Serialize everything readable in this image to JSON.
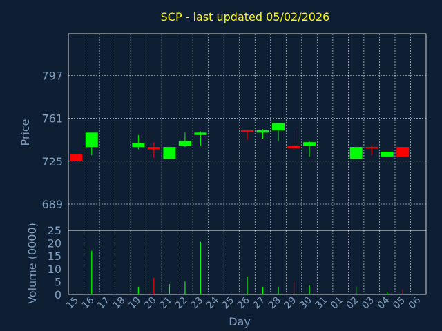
{
  "chart_data": [
    {
      "type": "candlestick",
      "title": "SCP - last updated 05/02/2026",
      "xlabel": "",
      "ylabel": "Price",
      "ylim": [
        667,
        832
      ],
      "yticks": [
        689,
        725,
        761,
        797
      ],
      "grid": true,
      "colors": {
        "up": "#00ff00",
        "down": "#ff0000",
        "background": "#0e1f33",
        "plot_border": "#ffffff",
        "grid": "#ffffff",
        "title": "#ffff00",
        "label": "#7f9fc0"
      },
      "candles": [
        {
          "day": "15",
          "open": 731,
          "high": 731,
          "low": 725,
          "close": 725
        },
        {
          "day": "16",
          "open": 737,
          "high": 749,
          "low": 730,
          "close": 749
        },
        {
          "day": "19",
          "open": 737,
          "high": 747,
          "low": 735,
          "close": 740
        },
        {
          "day": "20",
          "open": 737,
          "high": 741,
          "low": 728,
          "close": 735
        },
        {
          "day": "21",
          "open": 727,
          "high": 737,
          "low": 727,
          "close": 737
        },
        {
          "day": "22",
          "open": 738,
          "high": 749,
          "low": 737,
          "close": 742
        },
        {
          "day": "23",
          "open": 747,
          "high": 750,
          "low": 738,
          "close": 749
        },
        {
          "day": "26",
          "open": 751,
          "high": 751,
          "low": 743,
          "close": 750
        },
        {
          "day": "27",
          "open": 749,
          "high": 752,
          "low": 744,
          "close": 751
        },
        {
          "day": "28",
          "open": 751,
          "high": 757,
          "low": 742,
          "close": 757
        },
        {
          "day": "29",
          "open": 738,
          "high": 750,
          "low": 735,
          "close": 736
        },
        {
          "day": "30",
          "open": 738,
          "high": 742,
          "low": 729,
          "close": 741
        },
        {
          "day": "02",
          "open": 727,
          "high": 737,
          "low": 727,
          "close": 737
        },
        {
          "day": "03",
          "open": 737,
          "high": 738,
          "low": 730,
          "close": 736
        },
        {
          "day": "04",
          "open": 729,
          "high": 733,
          "low": 729,
          "close": 733
        },
        {
          "day": "05",
          "open": 737,
          "high": 737,
          "low": 729,
          "close": 729
        }
      ]
    },
    {
      "type": "bar",
      "xlabel": "Day",
      "ylabel": "Volume (0000)",
      "ylim": [
        0,
        25
      ],
      "yticks": [
        0,
        5,
        10,
        15,
        20,
        25
      ],
      "categories": [
        "15",
        "16",
        "17",
        "18",
        "19",
        "20",
        "21",
        "22",
        "23",
        "24",
        "25",
        "26",
        "27",
        "28",
        "29",
        "30",
        "31",
        "01",
        "02",
        "03",
        "04",
        "05",
        "06"
      ],
      "values": [
        0,
        17,
        0,
        0,
        3,
        6.5,
        4,
        5,
        20.5,
        0,
        0,
        7,
        3,
        3,
        5,
        3.5,
        0,
        0,
        3,
        0,
        1,
        2,
        0
      ],
      "bar_colors": [
        "#00ff00",
        "#00ff00",
        "#00ff00",
        "#00ff00",
        "#00ff00",
        "#ff0000",
        "#00ff00",
        "#00ff00",
        "#00ff00",
        "#00ff00",
        "#00ff00",
        "#00ff00",
        "#00ff00",
        "#00ff00",
        "#ff0000",
        "#00ff00",
        "#00ff00",
        "#00ff00",
        "#00ff00",
        "#00ff00",
        "#00ff00",
        "#ff0000",
        "#00ff00"
      ]
    }
  ]
}
